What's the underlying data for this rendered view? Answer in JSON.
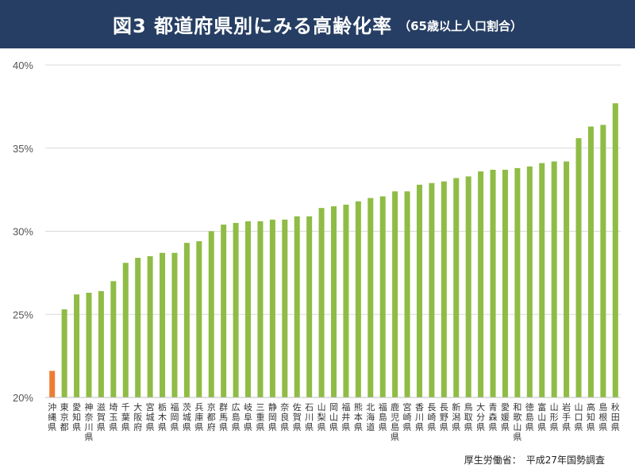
{
  "title": {
    "main": "図3 都道府県別にみる高齢化率",
    "sub": "（65歳以上人口割合）"
  },
  "source": "厚生労働省：　平成27年国勢調査",
  "colors": {
    "header_bg": "#263e63",
    "highlight": "#ed7d31",
    "bar": "#8fbc45",
    "grid": "#d9d9d9"
  },
  "chart_data": {
    "type": "bar",
    "ylim": [
      20,
      40
    ],
    "yticks": [
      "20%",
      "25%",
      "30%",
      "35%",
      "40%"
    ],
    "ytick_values": [
      20,
      25,
      30,
      35,
      40
    ],
    "grid": true,
    "categories": [
      "沖縄県",
      "東京都",
      "愛知県",
      "神奈川県",
      "滋賀県",
      "埼玉県",
      "千葉県",
      "大阪府",
      "宮城県",
      "栃木県",
      "福岡県",
      "茨城県",
      "兵庫県",
      "京都府",
      "群馬県",
      "広島県",
      "岐阜県",
      "三重県",
      "静岡県",
      "奈良県",
      "佐賀県",
      "石川県",
      "山梨県",
      "岡山県",
      "福井県",
      "熊本県",
      "北海道",
      "福島県",
      "鹿児島県",
      "宮崎県",
      "香川県",
      "長崎県",
      "長野県",
      "新潟県",
      "鳥取県",
      "大分県",
      "青森県",
      "愛媛県",
      "和歌山県",
      "徳島県",
      "富山県",
      "山形県",
      "岩手県",
      "山口県",
      "高知県",
      "島根県",
      "秋田県"
    ],
    "values": [
      21.6,
      25.3,
      26.2,
      26.3,
      26.4,
      27.0,
      28.1,
      28.4,
      28.5,
      28.7,
      28.7,
      29.3,
      29.4,
      30.0,
      30.4,
      30.5,
      30.6,
      30.6,
      30.7,
      30.7,
      30.9,
      30.9,
      31.4,
      31.5,
      31.6,
      31.8,
      32.0,
      32.1,
      32.4,
      32.4,
      32.8,
      32.9,
      33.0,
      33.2,
      33.3,
      33.6,
      33.7,
      33.7,
      33.8,
      33.9,
      34.1,
      34.2,
      34.2,
      35.6,
      36.3,
      36.4,
      37.7
    ],
    "highlight_index": 0
  }
}
